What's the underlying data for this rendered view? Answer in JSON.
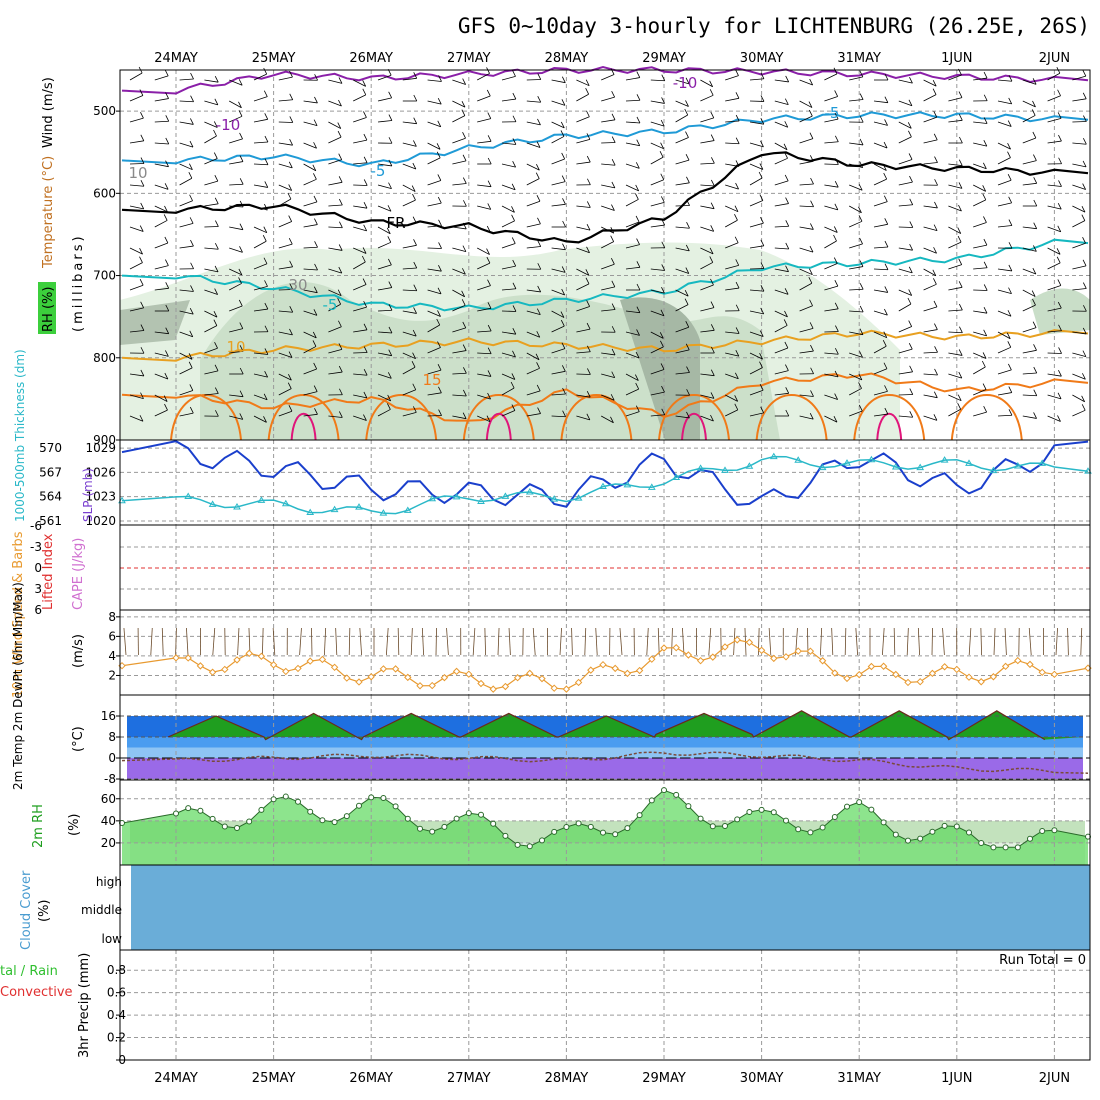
{
  "title": "GFS 0~10day 3-hourly for LICHTENBURG (26.25E, 26S)",
  "dates": [
    "24MAY",
    "25MAY",
    "26MAY",
    "27MAY",
    "28MAY",
    "29MAY",
    "30MAY",
    "31MAY",
    "1JUN",
    "2JUN"
  ],
  "colors": {
    "rh_light": "#e4f1e2",
    "rh_mid": "#c9dec8",
    "rh_dark": "#a6b8a5",
    "temp_m10": "#8a1fa8",
    "temp_m5": "#1f9ad6",
    "temp_fr": "#000000",
    "temp_5": "#16b8c0",
    "temp_10": "#e8a020",
    "temp_15": "#f07a18",
    "temp_20": "#e0157a",
    "thickness": "#2ab8c8",
    "slp": "#1a3fcc",
    "wind10": "#e89a30",
    "barb": "#000000",
    "lifted": "#e03030",
    "cape": "#d070d0",
    "cloud": "#6aadd8",
    "t_green_dark": "#1f9e1f",
    "t_green": "#3ccf3c",
    "t_blue_dark": "#1e6fe0",
    "t_blue": "#4a9cf0",
    "t_blue_light": "#8ec4f4",
    "t_purple": "#9a6ae8",
    "t_purple_light": "#c49af0",
    "rh_fill": "#5cd85c",
    "precip_total": "#2fbf2f",
    "precip_conv": "#e03030"
  },
  "panels": {
    "upper": {
      "ylabel_wind": "Wind (m/s)",
      "ylabel_temp": "Temperature (°C)",
      "ylabel_rh": "RH (%)",
      "ylabel_unit": "(millibars)",
      "yticks": [
        "500",
        "600",
        "700",
        "800",
        "900"
      ],
      "contour_labels": [
        "-10",
        "-10",
        "-5",
        "-5",
        "FR",
        "-5",
        "10",
        "15",
        "30",
        "10"
      ],
      "chart_data": {
        "type": "line",
        "ylim": [
          900,
          450
        ],
        "x": [
          "24MAY",
          "25MAY",
          "26MAY",
          "27MAY",
          "28MAY",
          "29MAY",
          "30MAY",
          "31MAY",
          "1JUN",
          "2JUN"
        ],
        "series": [
          {
            "name": "-10",
            "values": [
              475,
              455,
              460,
              455,
              450,
              450,
              452,
              455,
              458,
              462
            ]
          },
          {
            "name": "-5",
            "values": [
              560,
              555,
              565,
              545,
              530,
              525,
              510,
              505,
              505,
              510
            ]
          },
          {
            "name": "FR",
            "values": [
              620,
              615,
              635,
              640,
              660,
              630,
              550,
              565,
              570,
              575
            ]
          },
          {
            "name": "5",
            "values": [
              700,
              715,
              735,
              740,
              730,
              720,
              690,
              685,
              680,
              660
            ]
          },
          {
            "name": "10",
            "values": [
              800,
              790,
              785,
              780,
              785,
              790,
              780,
              770,
              775,
              770
            ]
          },
          {
            "name": "15",
            "values": [
              845,
              860,
              850,
              880,
              840,
              870,
              830,
              820,
              840,
              830
            ]
          }
        ]
      }
    },
    "thickness": {
      "ylabel_left": "1000-500mb Thickness (dm)",
      "ylabel_right": "SLP (mb)",
      "yticks_left": [
        "570",
        "567",
        "564",
        "561"
      ],
      "yticks_right": [
        "1029",
        "1026",
        "1023",
        "1020"
      ],
      "chart_data": {
        "type": "line",
        "x": [
          "24MAY",
          "25MAY",
          "26MAY",
          "27MAY",
          "28MAY",
          "29MAY",
          "30MAY",
          "31MAY",
          "1JUN",
          "2JUN"
        ],
        "series": [
          {
            "name": "SLP",
            "values": [
              1028.5,
              1026.5,
              1024,
              1023.5,
              1023,
              1027.5,
              1022,
              1028,
              1024,
              1028.5
            ]
          },
          {
            "name": "Thickness",
            "values": [
              563.5,
              563,
              562,
              564,
              564,
              566,
              568.5,
              568,
              568,
              567.5
            ]
          }
        ]
      }
    },
    "cape": {
      "ylabel_left": "Lifted Index",
      "ylabel_right": "CAPE (J/kg)",
      "yticks": [
        "-6",
        "-3",
        "0",
        "3",
        "6"
      ]
    },
    "wind10": {
      "ylabel": "10m Wind Speed & Barbs",
      "ylabel2": "(m/s)",
      "yticks": [
        "8",
        "6",
        "4",
        "2"
      ],
      "chart_data": {
        "type": "line",
        "ylim": [
          0,
          8
        ],
        "x": [
          "24MAY",
          "25MAY",
          "26MAY",
          "27MAY",
          "28MAY",
          "29MAY",
          "30MAY",
          "31MAY",
          "1JUN",
          "2JUN"
        ],
        "values": [
          3.0,
          3.5,
          2.0,
          1.5,
          1.2,
          4.0,
          5.0,
          2.2,
          2.0,
          3.0
        ]
      }
    },
    "temp2m": {
      "ylabel": "2m Temp 2m DewPt (6hr Min/Max)",
      "ylabel2": "(°C)",
      "yticks": [
        "16",
        "8",
        "0",
        "-8"
      ],
      "chart_data": {
        "type": "area",
        "ylim": [
          -10,
          20
        ],
        "x": [
          "24MAY",
          "25MAY",
          "26MAY",
          "27MAY",
          "28MAY",
          "29MAY",
          "30MAY",
          "31MAY",
          "1JUN",
          "2JUN"
        ],
        "series": [
          {
            "name": "max",
            "values": [
              16,
              17,
              17,
              17,
              16,
              17,
              18,
              18,
              18,
              17
            ]
          },
          {
            "name": "min",
            "values": [
              8,
              7,
              8,
              8,
              8,
              9,
              8,
              8,
              7,
              8
            ]
          },
          {
            "name": "dewpt",
            "values": [
              -1,
              0,
              1,
              0,
              -1,
              2,
              1,
              -1,
              -4,
              -5
            ]
          }
        ]
      }
    },
    "rh2m": {
      "ylabel": "2m RH",
      "ylabel2": "(%)",
      "yticks": [
        "60",
        "40",
        "20"
      ],
      "chart_data": {
        "type": "area",
        "ylim": [
          0,
          70
        ],
        "x": [
          "24MAY",
          "25MAY",
          "26MAY",
          "27MAY",
          "28MAY",
          "29MAY",
          "30MAY",
          "31MAY",
          "1JUN",
          "2JUN"
        ],
        "values": [
          50,
          62,
          63,
          48,
          35,
          68,
          50,
          57,
          35,
          32
        ]
      }
    },
    "cloud": {
      "ylabel": "Cloud Cover",
      "ylabel2": "(%)",
      "levels": [
        "high",
        "middle",
        "low"
      ]
    },
    "precip": {
      "ylabel_total": "tal / Rain",
      "ylabel_conv": "Convective",
      "ylabel": "3hr Precip (mm)",
      "yticks": [
        "0.8",
        "0.6",
        "0.4",
        "0.2",
        "0"
      ],
      "run_total": "Run Total = 0"
    }
  }
}
